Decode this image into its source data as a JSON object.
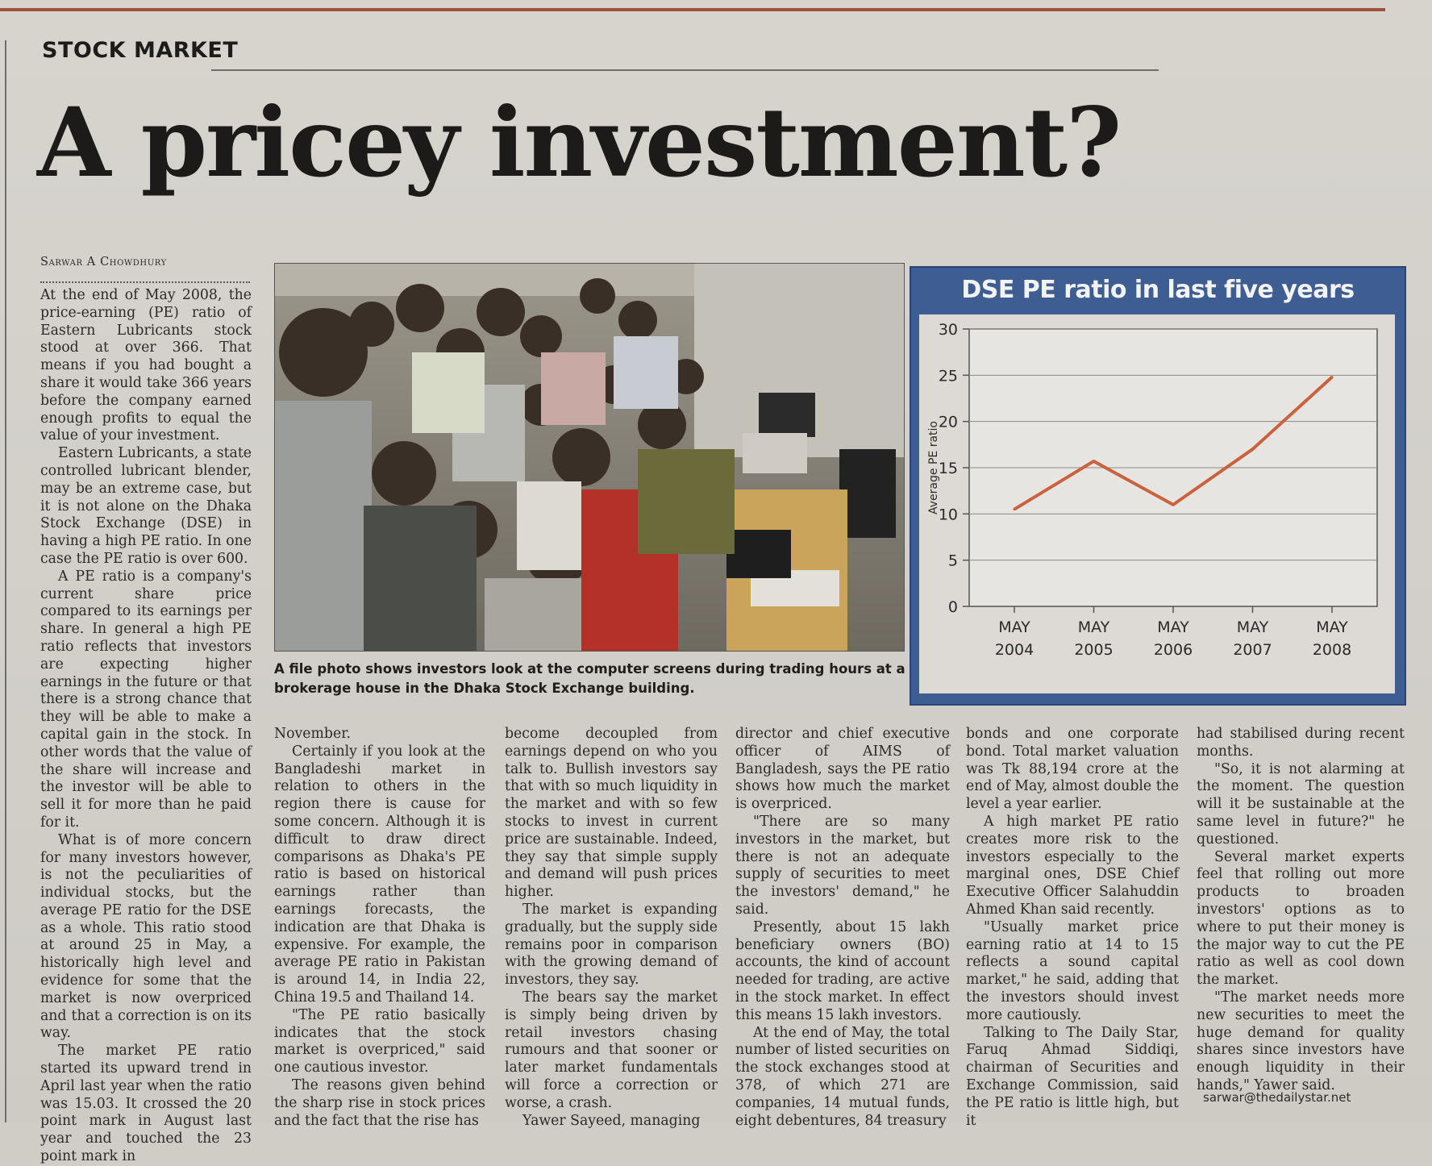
{
  "section": "STOCK MARKET",
  "headline": "A pricey investment?",
  "byline": "Sarwar A Chowdhury",
  "photo_caption": "A file photo shows investors look at the computer screens during trading hours at a brokerage house in the Dhaka Stock Exchange building.",
  "email": "sarwar@thedailystar.net",
  "columns": [
    {
      "paragraphs": [
        "At the end of May 2008, the price-earning (PE) ratio of Eastern Lubricants stock stood at over 366. That means if you had bought a share it would take 366 years before the company earned enough profits to equal the value of your investment.",
        "Eastern Lubricants, a state controlled lubricant blender, may be an extreme case, but it is not alone on the Dhaka Stock Exchange (DSE) in having a high PE ratio. In one case the PE ratio is over 600.",
        "A PE ratio is a company's current share price compared to its earnings per share. In general a high PE ratio reflects that investors are expecting higher earnings in the future or that there is a strong chance that they will be able to make a capital gain in the stock. In other words that the value of the share will increase and the investor will be able to sell it for more than he paid for it.",
        "What is of more concern for many investors however, is not the peculiarities of individual stocks, but the average PE ratio for the DSE as a whole. This ratio stood at around 25 in May, a historically high level and evidence for some that the market is now overpriced and that a correction is on its way.",
        "The market PE ratio started its upward trend in April last year when the ratio was 15.03. It crossed the 20 point mark in August last year and touched the 23 point mark in"
      ]
    },
    {
      "paragraphs": [
        "November.",
        "Certainly if you look at the Bangladeshi market in relation to others in the region there is cause for some concern. Although it is difficult to draw direct comparisons as Dhaka's PE ratio is based on historical earnings rather than earnings forecasts, the indication are that Dhaka is expensive. For example, the average PE ratio in Pakistan is around 14, in India 22, China 19.5 and Thailand 14.",
        "\"The PE ratio basically indicates that the stock market is overpriced,\" said one cautious investor.",
        "The reasons given behind the sharp rise in stock prices and the fact that the rise has"
      ]
    },
    {
      "paragraphs": [
        "become decoupled from earnings depend on who you talk to. Bullish investors say that with so much liquidity in the market and with so few stocks to invest in current price are sustainable. Indeed, they say that simple supply and demand will push prices higher.",
        "The market is expanding gradually, but the supply side remains poor in comparison with the growing demand of investors, they say.",
        "The bears say the market is simply being driven by retail investors chasing rumours and that sooner or later market fundamentals will force a correction or worse, a crash.",
        "Yawer Sayeed, managing"
      ]
    },
    {
      "paragraphs": [
        "director and chief executive officer of AIMS of Bangladesh, says the PE ratio shows how much the market is overpriced.",
        "\"There are so many investors in the market, but there is not an adequate supply of securities to meet the investors' demand,\" he said.",
        "Presently, about 15 lakh beneficiary owners (BO) accounts, the kind of account needed for trading, are active in the stock market. In effect this means 15 lakh investors.",
        "At the end of May, the total number of listed securities on the stock exchanges stood at 378, of which 271 are companies, 14 mutual funds, eight debentures, 84 treasury"
      ]
    },
    {
      "paragraphs": [
        "bonds and one corporate bond. Total market valuation was Tk 88,194 crore at the end of May, almost double the level a year earlier.",
        "A high market PE ratio creates more risk to the investors especially to the marginal ones, DSE Chief Executive Officer Salahuddin Ahmed Khan said recently.",
        "\"Usually market price earning ratio at 14 to 15 reflects a sound capital market,\" he said, adding that the investors should invest more cautiously.",
        "Talking to The Daily Star, Faruq Ahmad Siddiqi, chairman of Securities and Exchange Commission, said the PE ratio is little high, but it"
      ]
    },
    {
      "paragraphs": [
        "had stabilised during recent months.",
        "\"So, it is not alarming at the moment. The question will it be sustainable at the same level in future?\" he questioned.",
        "Several market experts feel that rolling out more products to broaden investors' options as to where to put their money is the major way to cut the PE ratio as well as cool down the market.",
        "\"The market needs more new securities to meet the huge demand for quality shares since investors have enough liquidity in their hands,\" Yawer said."
      ]
    }
  ],
  "chart_data": {
    "type": "line",
    "title": "DSE PE ratio in last five years",
    "ylabel": "Average PE ratio",
    "xlabel": "",
    "categories": [
      [
        "MAY",
        "2004"
      ],
      [
        "MAY",
        "2005"
      ],
      [
        "MAY",
        "2006"
      ],
      [
        "MAY",
        "2007"
      ],
      [
        "MAY",
        "2008"
      ]
    ],
    "values": [
      10.5,
      15.7,
      11,
      17,
      24.8
    ],
    "ylim": [
      0,
      30
    ],
    "yticks": [
      0,
      5,
      10,
      15,
      20,
      25,
      30
    ],
    "grid": true,
    "line_color": "#c9623d"
  },
  "colors": {
    "chart_frame": "#3e5d92",
    "chart_background": "#dddad6",
    "top_rule": "#a0513d"
  }
}
